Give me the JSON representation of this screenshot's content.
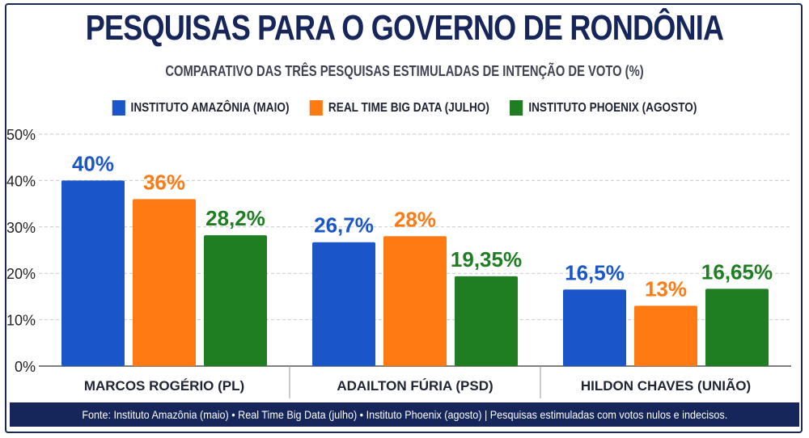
{
  "chart_data": {
    "type": "bar",
    "title": "PESQUISAS PARA O GOVERNO DE RONDÔNIA",
    "subtitle": "COMPARATIVO DAS TRÊS PESQUISAS ESTIMULADAS DE INTENÇÃO DE VOTO (%)",
    "categories": [
      "MARCOS ROGÉRIO (PL)",
      "ADAILTON FÚRIA (PSD)",
      "HILDON CHAVES (UNIÃO)"
    ],
    "series": [
      {
        "name": "INSTITUTO AMAZÔNIA (MAIO)",
        "color": "#1a56c8",
        "values": [
          40,
          26.7,
          16.5
        ],
        "labels": [
          "40%",
          "26,7%",
          "16,5%"
        ]
      },
      {
        "name": "REAL TIME BIG DATA (JULHO)",
        "color": "#ff7a12",
        "values": [
          36,
          28,
          13
        ],
        "labels": [
          "36%",
          "28%",
          "13%"
        ]
      },
      {
        "name": "INSTITUTO PHOENIX (AGOSTO)",
        "color": "#1f7d22",
        "values": [
          28.2,
          19.35,
          16.65
        ],
        "labels": [
          "28,2%",
          "19,35%",
          "16,65%"
        ]
      }
    ],
    "yticks": [
      "0%",
      "10%",
      "20%",
      "30%",
      "40%",
      "50%"
    ],
    "ylim": [
      0,
      50
    ],
    "grid": true,
    "legend": "top-center"
  },
  "footer": "Fonte: Instituto Amazônia (maio) • Real Time Big Data (julho) • Instituto Phoenix (agosto) | Pesquisas estimuladas com votos nulos e indecisos."
}
